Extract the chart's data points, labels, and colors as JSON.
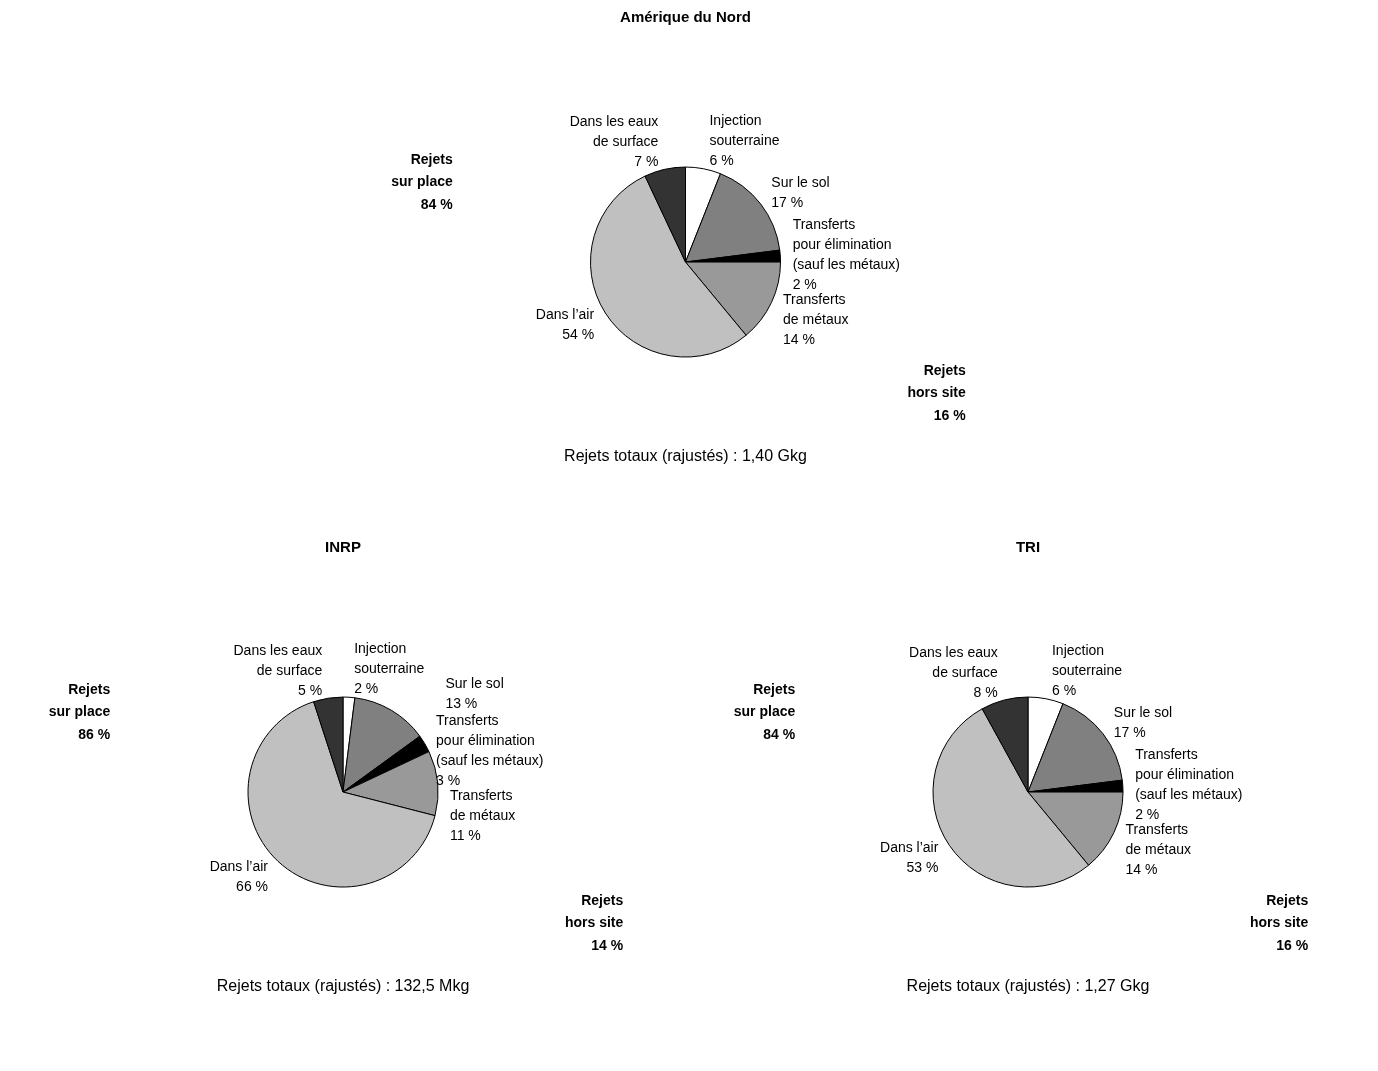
{
  "chart_data": [
    {
      "type": "pie",
      "title": "Amérique du Nord",
      "categories": [
        "Injection\nsouterraine",
        "Sur le sol",
        "Transferts\npour élimination\n(sauf les métaux)",
        "Transferts\nde métaux",
        "Dans l’air",
        "Dans les eaux\nde surface"
      ],
      "values": [
        6,
        17,
        2,
        14,
        54,
        7
      ],
      "value_labels": [
        "6 %",
        "17 %",
        "2 %",
        "14 %",
        "54 %",
        "7 %"
      ],
      "colors": [
        "#ffffff",
        "#808080",
        "#000000",
        "#999999",
        "#c0c0c0",
        "#333333"
      ],
      "annotations": [
        "Rejets\nsur place\n84 %",
        "Rejets\nhors site\n16 %",
        "Rejets totaux (rajustés) : 1,40 Gkg"
      ]
    },
    {
      "type": "pie",
      "title": "INRP",
      "categories": [
        "Injection\nsouterraine",
        "Sur le sol",
        "Transferts\npour élimination\n(sauf les métaux)",
        "Transferts\nde métaux",
        "Dans l’air",
        "Dans les eaux\nde surface"
      ],
      "values": [
        2,
        13,
        3,
        11,
        66,
        5
      ],
      "value_labels": [
        "2 %",
        "13 %",
        "3 %",
        "11 %",
        "66 %",
        "5 %"
      ],
      "colors": [
        "#ffffff",
        "#808080",
        "#000000",
        "#999999",
        "#c0c0c0",
        "#333333"
      ],
      "annotations": [
        "Rejets\nsur place\n86 %",
        "Rejets\nhors site\n14 %",
        "Rejets totaux (rajustés) : 132,5 Mkg"
      ]
    },
    {
      "type": "pie",
      "title": "TRI",
      "categories": [
        "Injection\nsouterraine",
        "Sur le sol",
        "Transferts\npour élimination\n(sauf les métaux)",
        "Transferts\nde métaux",
        "Dans l’air",
        "Dans les eaux\nde surface"
      ],
      "values": [
        6,
        17,
        2,
        14,
        53,
        8
      ],
      "value_labels": [
        "6 %",
        "17 %",
        "2 %",
        "14 %",
        "53 %",
        "8 %"
      ],
      "colors": [
        "#ffffff",
        "#808080",
        "#000000",
        "#999999",
        "#c0c0c0",
        "#333333"
      ],
      "annotations": [
        "Rejets\nsur place\n84 %",
        "Rejets\nhors site\n16 %",
        "Rejets totaux (rajustés) : 1,27 Gkg"
      ]
    }
  ]
}
